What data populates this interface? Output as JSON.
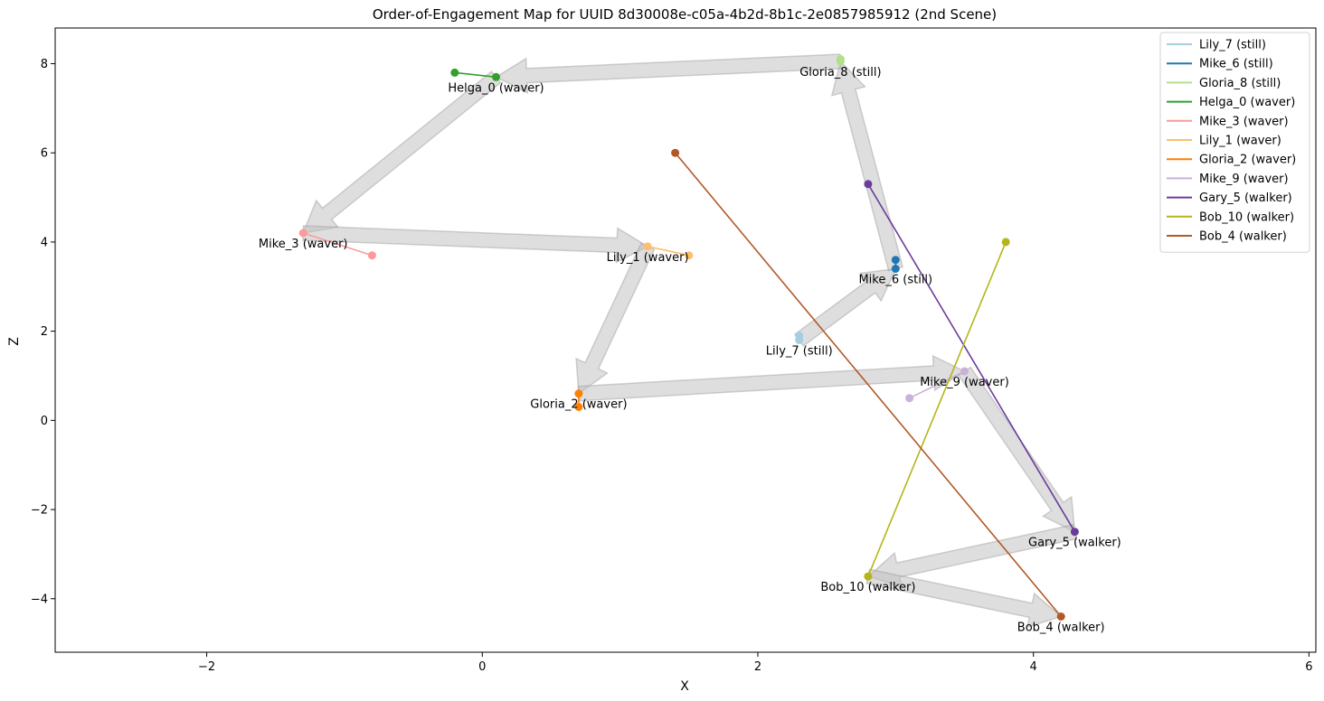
{
  "chart_data": {
    "type": "line",
    "title": "Order-of-Engagement Map for UUID 8d30008e-c05a-4b2d-8b1c-2e0857985912 (2nd Scene)",
    "xlabel": "X",
    "ylabel": "Z",
    "xlim": [
      -3.1,
      6.05
    ],
    "ylim": [
      -5.2,
      8.8
    ],
    "xticks": [
      -2,
      0,
      2,
      4,
      6
    ],
    "yticks": [
      -4,
      -2,
      0,
      2,
      4,
      6,
      8
    ],
    "grid": false,
    "legend_position": "top-right",
    "series": [
      {
        "name": "Lily_7 (still)",
        "color": "#a6cee3",
        "points": [
          [
            2.3,
            1.9
          ],
          [
            2.3,
            1.8
          ]
        ],
        "label_at": [
          2.3,
          1.8
        ]
      },
      {
        "name": "Mike_6 (still)",
        "color": "#1f78b4",
        "points": [
          [
            3.0,
            3.6
          ],
          [
            3.0,
            3.4
          ]
        ],
        "label_at": [
          3.0,
          3.4
        ]
      },
      {
        "name": "Gloria_8 (still)",
        "color": "#b2df8a",
        "points": [
          [
            2.6,
            8.1
          ],
          [
            2.6,
            8.05
          ]
        ],
        "label_at": [
          2.6,
          8.05
        ]
      },
      {
        "name": "Helga_0 (waver)",
        "color": "#33a02c",
        "points": [
          [
            -0.2,
            7.8
          ],
          [
            0.1,
            7.7
          ]
        ],
        "label_at": [
          0.1,
          7.7
        ]
      },
      {
        "name": "Mike_3 (waver)",
        "color": "#fb9a99",
        "points": [
          [
            -0.8,
            3.7
          ],
          [
            -1.3,
            4.2
          ]
        ],
        "label_at": [
          -1.3,
          4.2
        ]
      },
      {
        "name": "Lily_1 (waver)",
        "color": "#fdbf6f",
        "points": [
          [
            1.5,
            3.7
          ],
          [
            1.2,
            3.9
          ]
        ],
        "label_at": [
          1.2,
          3.9
        ]
      },
      {
        "name": "Gloria_2 (waver)",
        "color": "#ff7f00",
        "points": [
          [
            0.7,
            0.3
          ],
          [
            0.7,
            0.6
          ]
        ],
        "label_at": [
          0.7,
          0.6
        ]
      },
      {
        "name": "Mike_9 (waver)",
        "color": "#cab2d6",
        "points": [
          [
            3.1,
            0.5
          ],
          [
            3.5,
            1.1
          ]
        ],
        "label_at": [
          3.5,
          1.1
        ]
      },
      {
        "name": "Gary_5 (walker)",
        "color": "#6a3d9a",
        "points": [
          [
            2.8,
            5.3
          ],
          [
            4.3,
            -2.5
          ]
        ],
        "label_at": [
          4.3,
          -2.5
        ]
      },
      {
        "name": "Bob_10 (walker)",
        "color": "#b5b51b",
        "points": [
          [
            3.8,
            4.0
          ],
          [
            2.8,
            -3.5
          ]
        ],
        "label_at": [
          2.8,
          -3.5
        ]
      },
      {
        "name": "Bob_4 (walker)",
        "color": "#b15928",
        "points": [
          [
            1.4,
            6.0
          ],
          [
            4.2,
            -4.4
          ]
        ],
        "label_at": [
          4.2,
          -4.4
        ]
      }
    ],
    "engagement_order": [
      [
        0.1,
        7.7
      ],
      [
        -1.3,
        4.2
      ],
      [
        1.2,
        3.9
      ],
      [
        0.7,
        0.6
      ],
      [
        3.5,
        1.1
      ],
      [
        4.3,
        -2.5
      ],
      [
        2.8,
        -3.5
      ],
      [
        4.2,
        -4.4
      ]
    ],
    "engagement_order_2": [
      [
        2.3,
        1.8
      ],
      [
        3.0,
        3.4
      ],
      [
        2.6,
        8.05
      ],
      [
        0.1,
        7.7
      ]
    ]
  }
}
